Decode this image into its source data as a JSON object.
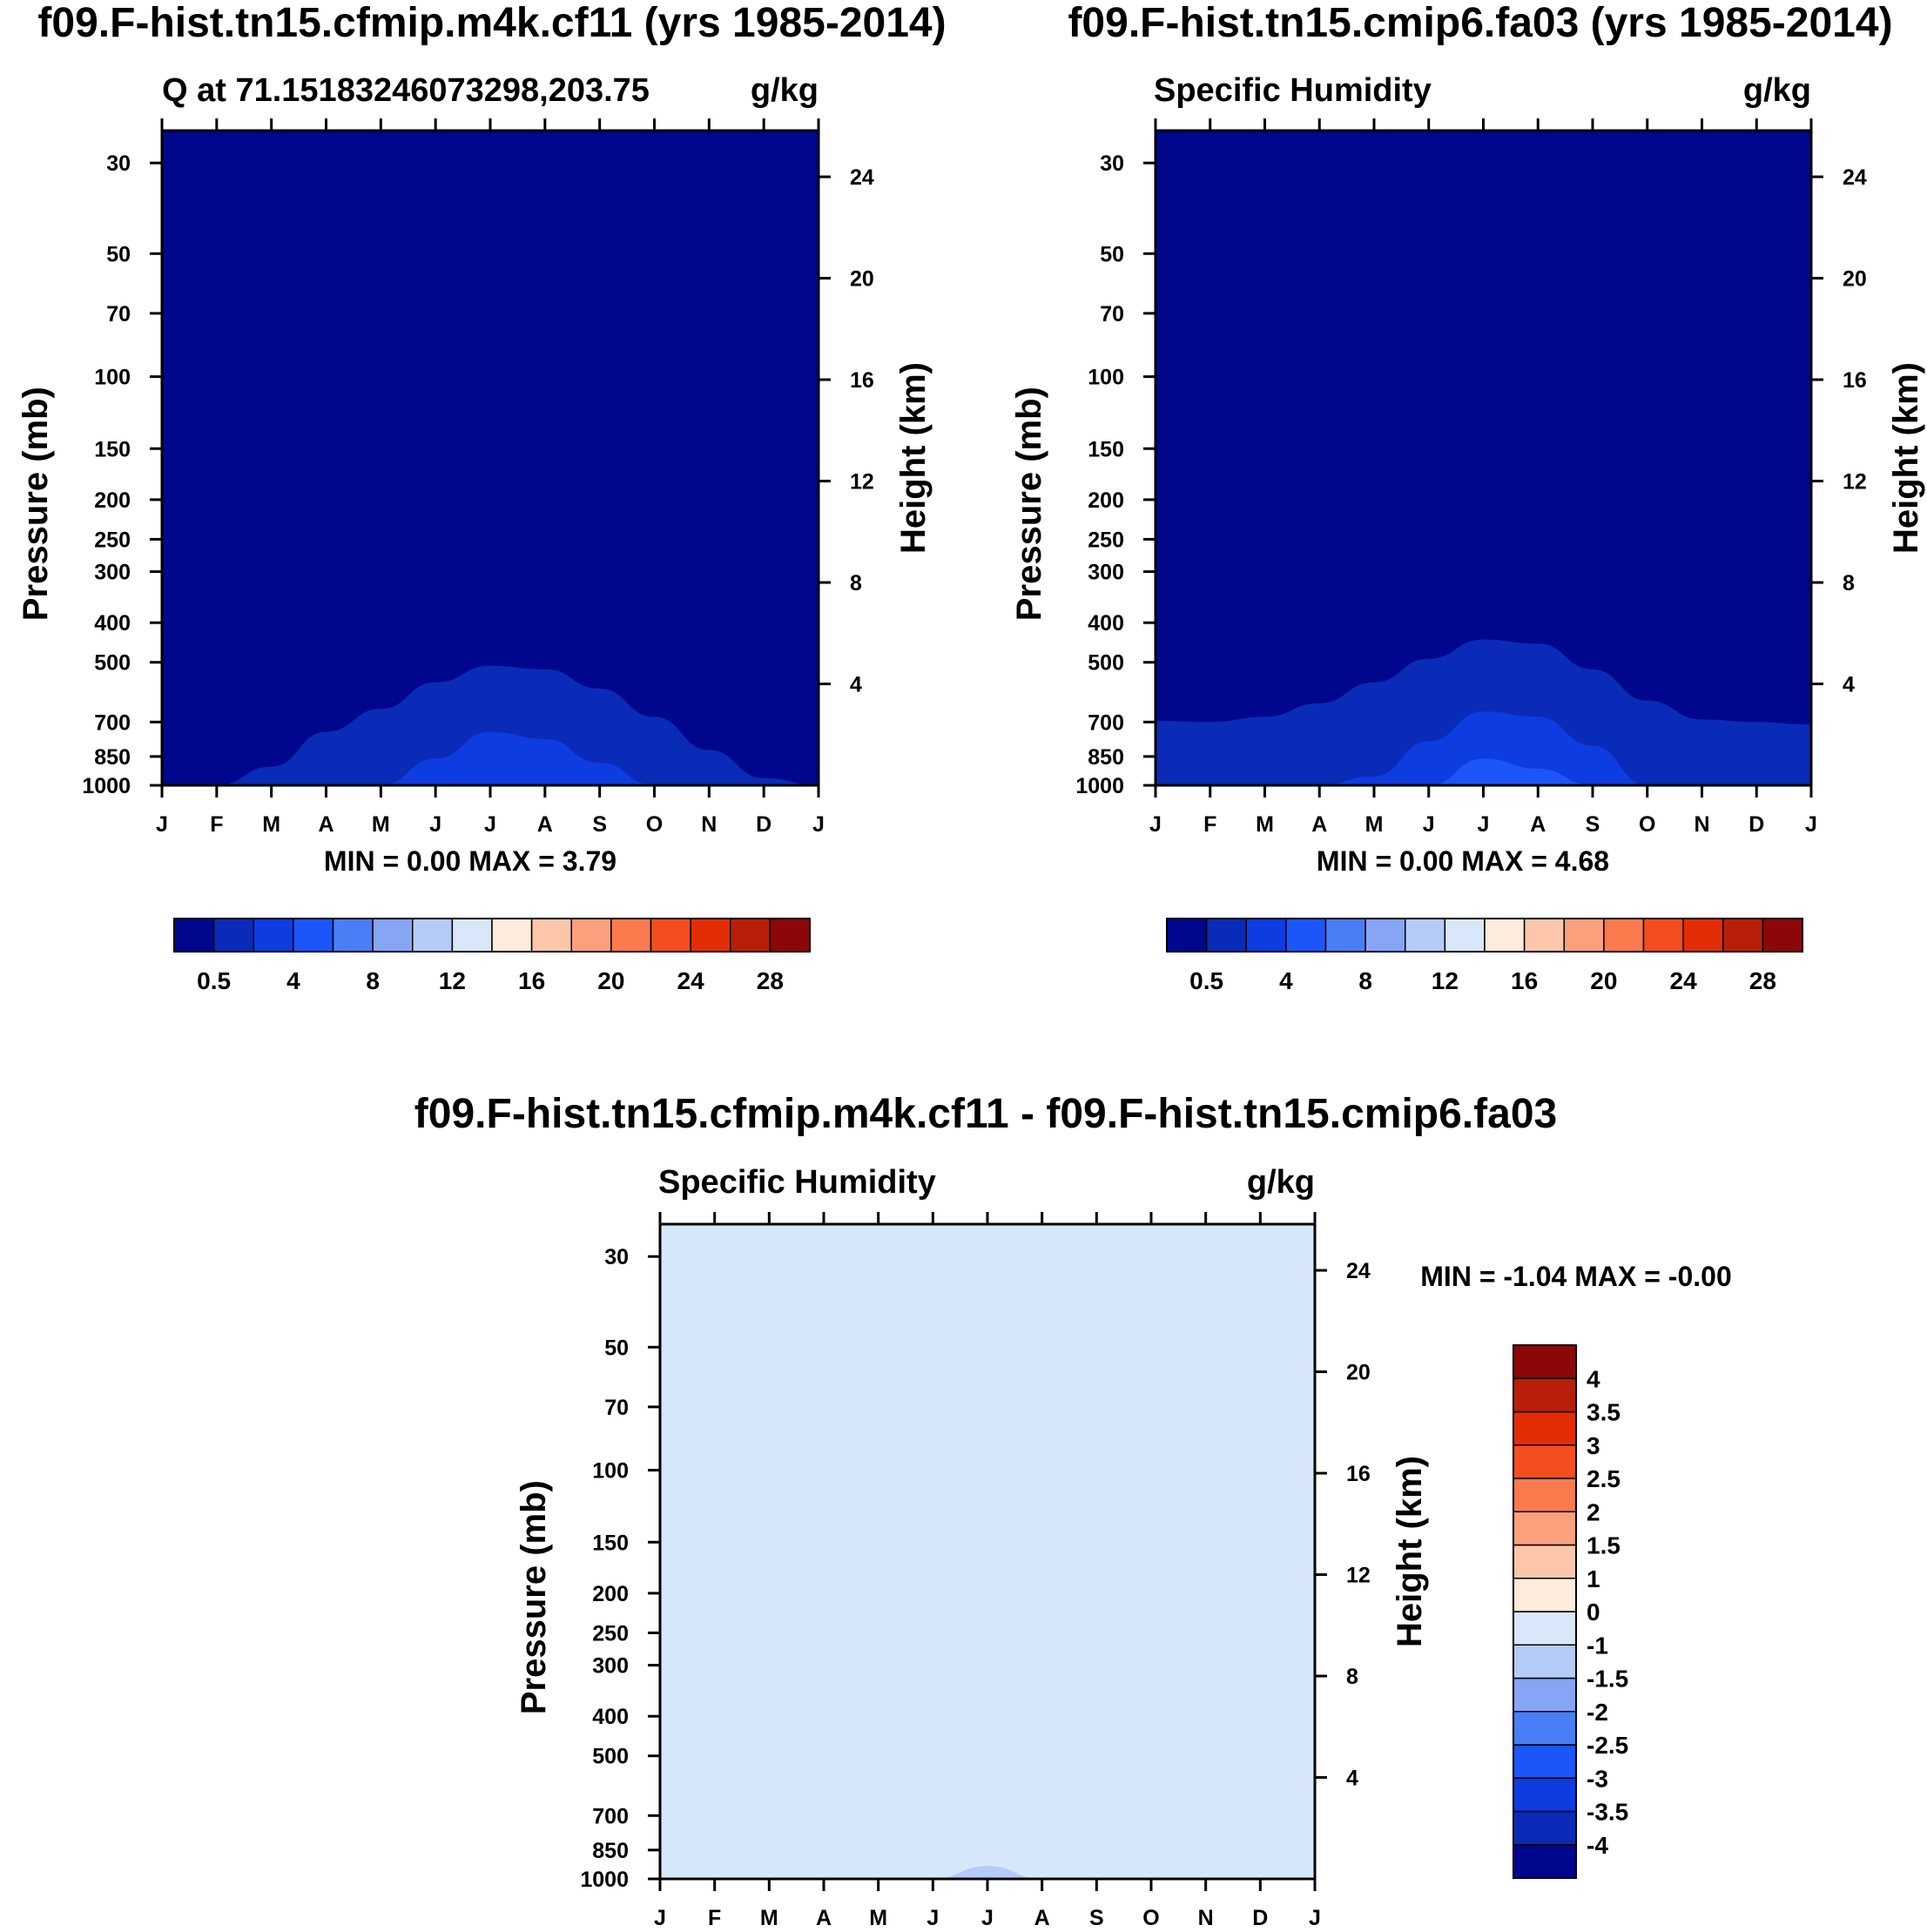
{
  "chart_data": [
    {
      "id": "panel1",
      "type": "contour",
      "title": "f09.F-hist.tn15.cfmip.m4k.cf11 (yrs 1985-2014)",
      "left_string": "Q at 71.15183246073298,203.75",
      "right_string": "g/kg",
      "xlabel": "",
      "ylabel": "Pressure (mb)",
      "y2label": "Height (km)",
      "xticks": [
        "J",
        "F",
        "M",
        "A",
        "M",
        "J",
        "J",
        "A",
        "S",
        "O",
        "N",
        "D",
        "J"
      ],
      "yticks": [
        30,
        50,
        70,
        100,
        150,
        200,
        250,
        300,
        400,
        500,
        700,
        850,
        1000
      ],
      "y2ticks": [
        4,
        8,
        12,
        16,
        20,
        24
      ],
      "ylim": [
        1000,
        25
      ],
      "y_scale": "log",
      "minmax": "MIN =   0.00 MAX =   3.79",
      "min": 0.0,
      "max": 3.79,
      "contours": [
        {
          "level": 0.5,
          "color": "#0a2bb8",
          "top_pressure": [
            1000,
            1000,
            900,
            740,
            650,
            560,
            510,
            520,
            580,
            680,
            820,
            960,
            1000
          ]
        },
        {
          "level": 2,
          "color": "#0d3ce0",
          "top_pressure": [
            1000,
            1000,
            1000,
            1000,
            1000,
            860,
            740,
            770,
            880,
            1000,
            1000,
            1000,
            1000
          ]
        }
      ],
      "colorbar": {
        "orientation": "horizontal",
        "colors": [
          "#00078d",
          "#0a2bb8",
          "#0d3ce0",
          "#1c55f9",
          "#4a7ef6",
          "#86a5f5",
          "#b5cbf7",
          "#d9e7fb",
          "#fdebdc",
          "#fcc6aa",
          "#fba07c",
          "#fa7a4e",
          "#f44d1f",
          "#e32d07",
          "#b81f0a",
          "#8c0707"
        ],
        "labels": [
          "0.5",
          "4",
          "8",
          "12",
          "16",
          "20",
          "24",
          "28"
        ]
      }
    },
    {
      "id": "panel2",
      "type": "contour",
      "title": "f09.F-hist.tn15.cmip6.fa03 (yrs 1985-2014)",
      "left_string": "Specific Humidity",
      "right_string": "g/kg",
      "xlabel": "",
      "ylabel": "Pressure (mb)",
      "y2label": "Height (km)",
      "xticks": [
        "J",
        "F",
        "M",
        "A",
        "M",
        "J",
        "J",
        "A",
        "S",
        "O",
        "N",
        "D",
        "J"
      ],
      "yticks": [
        30,
        50,
        70,
        100,
        150,
        200,
        250,
        300,
        400,
        500,
        700,
        850,
        1000
      ],
      "y2ticks": [
        4,
        8,
        12,
        16,
        20,
        24
      ],
      "ylim": [
        1000,
        25
      ],
      "y_scale": "log",
      "minmax": "MIN =   0.00 MAX =   4.68",
      "min": 0.0,
      "max": 4.68,
      "contours": [
        {
          "level": 0.5,
          "color": "#0a2bb8",
          "top_pressure": [
            695,
            700,
            680,
            630,
            560,
            490,
            440,
            450,
            520,
            620,
            690,
            700,
            710
          ]
        },
        {
          "level": 2,
          "color": "#0d3ce0",
          "top_pressure": [
            1000,
            1000,
            1000,
            1000,
            950,
            780,
            660,
            680,
            800,
            1000,
            1000,
            1000,
            1000
          ]
        },
        {
          "level": 3.5,
          "color": "#1c55f9",
          "top_pressure": [
            1000,
            1000,
            1000,
            1000,
            1000,
            1000,
            860,
            910,
            1000,
            1000,
            1000,
            1000,
            1000
          ]
        }
      ],
      "colorbar": {
        "orientation": "horizontal",
        "colors": [
          "#00078d",
          "#0a2bb8",
          "#0d3ce0",
          "#1c55f9",
          "#4a7ef6",
          "#86a5f5",
          "#b5cbf7",
          "#d9e7fb",
          "#fdebdc",
          "#fcc6aa",
          "#fba07c",
          "#fa7a4e",
          "#f44d1f",
          "#e32d07",
          "#b81f0a",
          "#8c0707"
        ],
        "labels": [
          "0.5",
          "4",
          "8",
          "12",
          "16",
          "20",
          "24",
          "28"
        ]
      }
    },
    {
      "id": "panel3",
      "type": "contour",
      "title": "f09.F-hist.tn15.cfmip.m4k.cf11 - f09.F-hist.tn15.cmip6.fa03",
      "left_string": "Specific Humidity",
      "right_string": "g/kg",
      "xlabel": "",
      "ylabel": "Pressure (mb)",
      "y2label": "Height (km)",
      "xticks": [
        "J",
        "F",
        "M",
        "A",
        "M",
        "J",
        "J",
        "A",
        "S",
        "O",
        "N",
        "D",
        "J"
      ],
      "yticks": [
        30,
        50,
        70,
        100,
        150,
        200,
        250,
        300,
        400,
        500,
        700,
        850,
        1000
      ],
      "y2ticks": [
        4,
        8,
        12,
        16,
        20,
        24
      ],
      "ylim": [
        1000,
        25
      ],
      "y_scale": "log",
      "minmax": "MIN =  -1.04 MAX =  -0.00",
      "min": -1.04,
      "max": -0.0,
      "fill_color": "#d6e7fc",
      "contours": [
        {
          "level": -1,
          "color": "#b5cbf7",
          "top_pressure": [
            1000,
            1000,
            1000,
            1000,
            1000,
            1000,
            930,
            1000,
            1000,
            1000,
            1000,
            1000,
            1000
          ]
        }
      ],
      "colorbar": {
        "orientation": "vertical",
        "colors": [
          "#00078d",
          "#0a2bb8",
          "#0d3ce0",
          "#1c55f9",
          "#4a7ef6",
          "#86a5f5",
          "#b5cbf7",
          "#d9e7fb",
          "#fdebdc",
          "#fcc6aa",
          "#fba07c",
          "#fa7a4e",
          "#f44d1f",
          "#e32d07",
          "#b81f0a",
          "#8c0707"
        ],
        "labels": [
          "-4",
          "-3.5",
          "-3",
          "-2.5",
          "-2",
          "-1.5",
          "-1",
          "0",
          "1",
          "1.5",
          "2",
          "2.5",
          "3",
          "3.5",
          "4"
        ]
      }
    }
  ]
}
